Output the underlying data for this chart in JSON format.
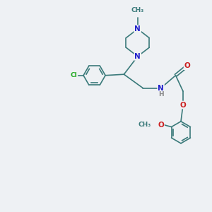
{
  "bg_color": "#eef1f4",
  "bond_color": "#3a7a7a",
  "N_color": "#2020cc",
  "O_color": "#cc2020",
  "Cl_color": "#22aa22",
  "H_color": "#888888",
  "lw": 1.2,
  "fs": 7.5,
  "fs_small": 6.5,
  "xlim": [
    0,
    10
  ],
  "ylim": [
    0,
    10
  ]
}
